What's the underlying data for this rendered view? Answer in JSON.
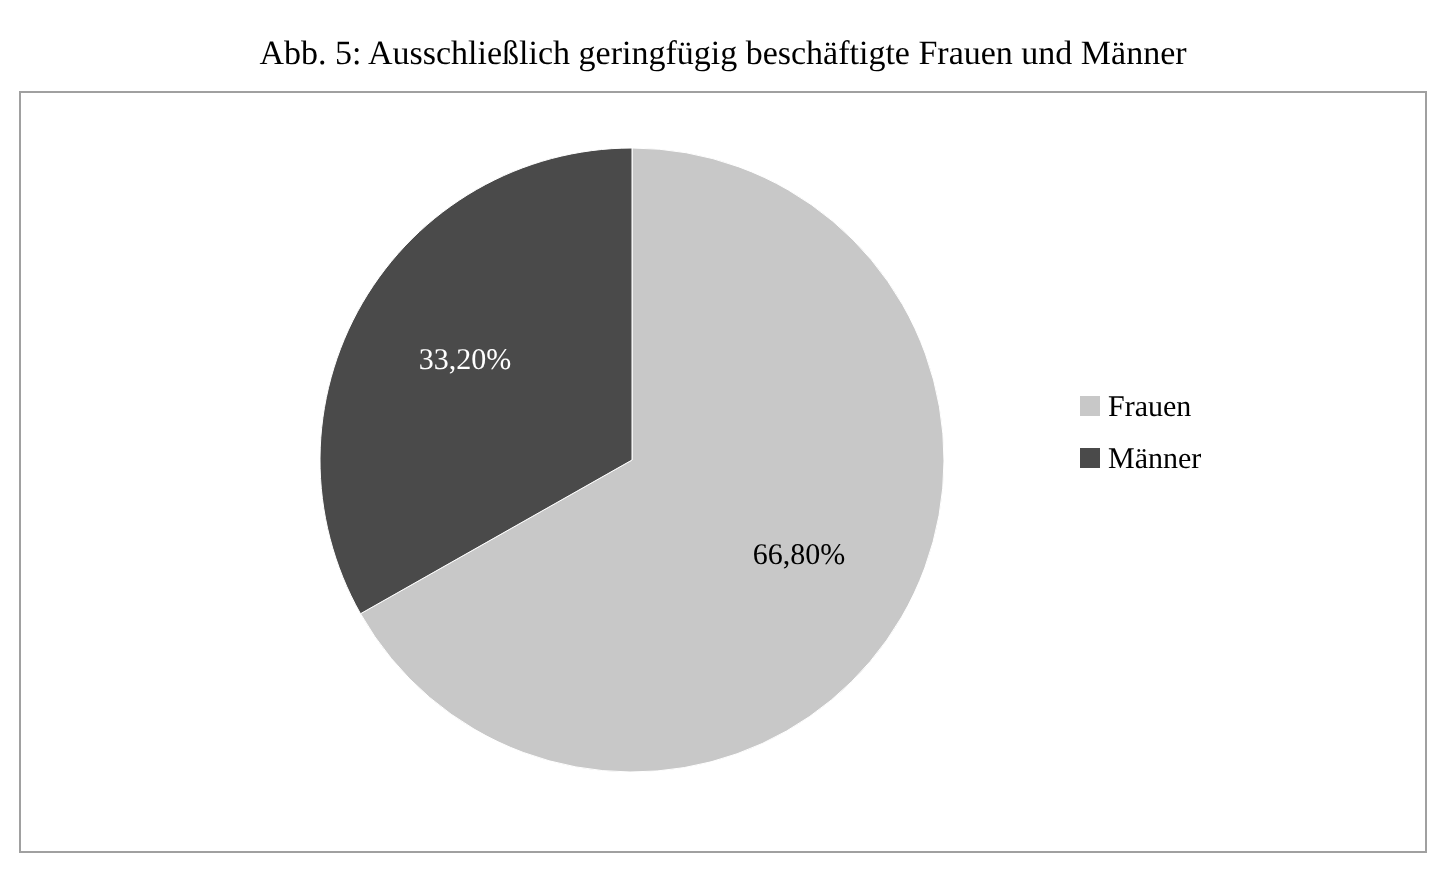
{
  "chart_data": {
    "type": "pie",
    "title": "Abb. 5: Ausschließlich geringfügig beschäftigte Frauen und Männer",
    "categories": [
      "Frauen",
      "Männer"
    ],
    "values": [
      66.8,
      33.2
    ],
    "colors": [
      "#c8c8c8",
      "#4a4a4a"
    ],
    "value_labels": [
      "66,80%",
      "33,20%"
    ],
    "legend": "right"
  }
}
